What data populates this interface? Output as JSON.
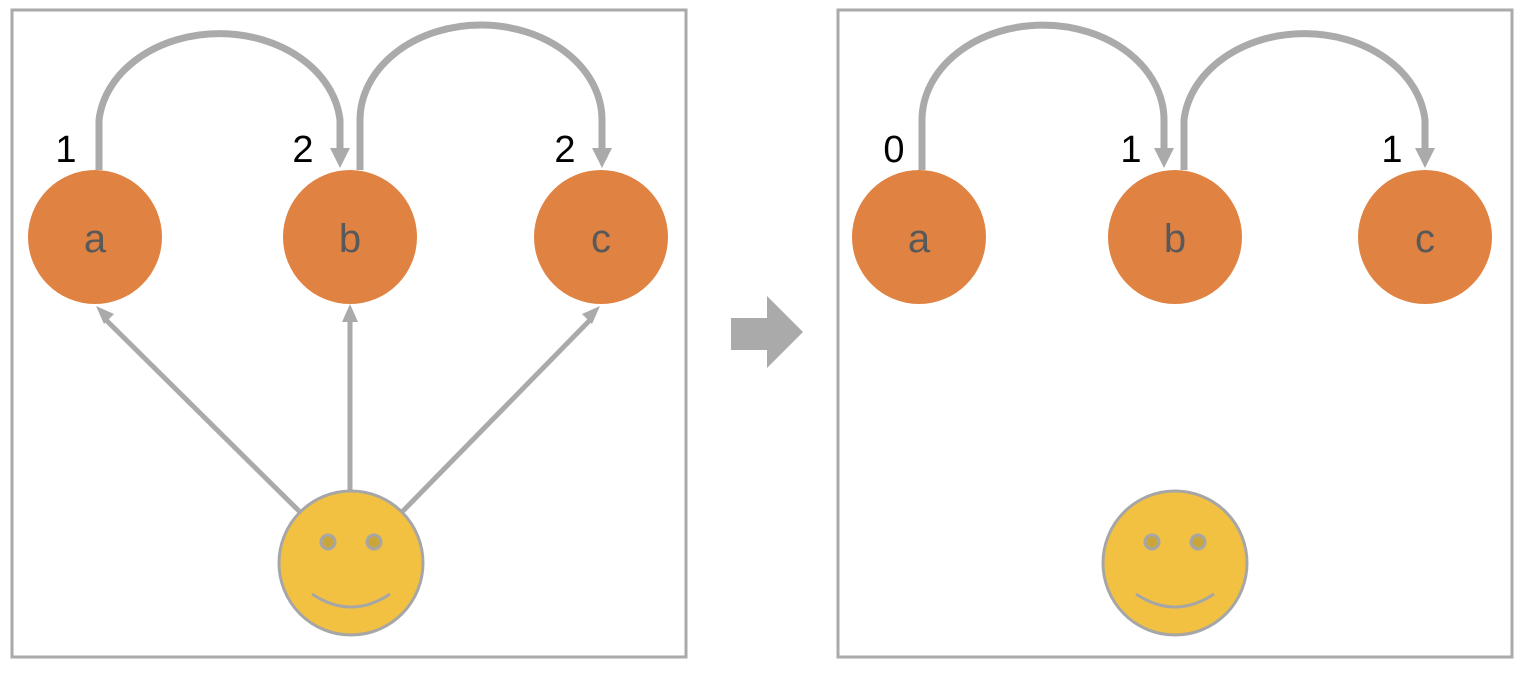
{
  "colors": {
    "frame": "#aaaaaa",
    "node": "#e08242",
    "edge": "#aaaaaa",
    "face": "#f2c142",
    "face_stroke": "#a6a6a6",
    "arrow": "#aaaaaa"
  },
  "panels": [
    {
      "name": "before",
      "nodes": [
        {
          "label": "a",
          "count": "1"
        },
        {
          "label": "b",
          "count": "2"
        },
        {
          "label": "c",
          "count": "2"
        }
      ],
      "edges": [
        {
          "from": "a",
          "to": "b"
        },
        {
          "from": "b",
          "to": "c"
        }
      ],
      "user_edges": [
        "a",
        "b",
        "c"
      ]
    },
    {
      "name": "after",
      "nodes": [
        {
          "label": "a",
          "count": "0"
        },
        {
          "label": "b",
          "count": "1"
        },
        {
          "label": "c",
          "count": "1"
        }
      ],
      "edges": [
        {
          "from": "a",
          "to": "b"
        },
        {
          "from": "b",
          "to": "c"
        }
      ],
      "user_edges": []
    }
  ],
  "transition_icon": "right-arrow-icon",
  "user_icon": "smiley-face-icon"
}
